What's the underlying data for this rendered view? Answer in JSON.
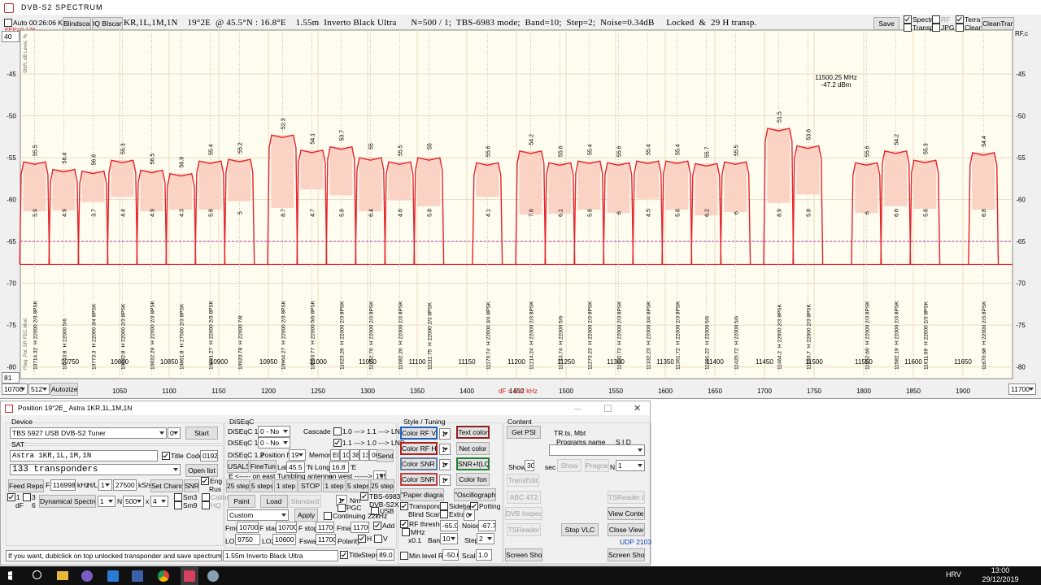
{
  "window_title": "DVB-S2  SPECTRUM",
  "toolbar": {
    "auto": "Auto 00:26:06  K=29",
    "blindscan": "Blindscan",
    "iq": "IQ BIscan",
    "info": "KR,1L,1M,1N    19°2E  @ 45.5°N : 16.8°E    1.55m  Inverto Black Ultra      N=500 / 1;  TBS-6983 mode;  Band=10;  Step=2;  Noise=0.34dB     Locked  &  29 H transp.",
    "fep": "FEP=0.176",
    "save": "Save",
    "spectr": "Spectr",
    "rf": "RF",
    "terra": "Terra",
    "transp": "Transp.",
    "jpg": "JPG",
    "clean": "Clean",
    "clean_transp": "CleanTransp",
    "ymax_box": "40",
    "ymin_box": "81",
    "fstart_box": "10700",
    "span_box": "512",
    "autosize": "Autozize",
    "fstop_box": "11700"
  },
  "chart_data": {
    "type": "spectrum",
    "color": "#e8202a",
    "band_color": "#fbd3c4",
    "threshold_color": "#c040c0",
    "grid": true,
    "xlim": [
      950,
      1950
    ],
    "ylim": [
      -81,
      -40
    ],
    "xticks": [
      1050,
      1100,
      1150,
      1200,
      1250,
      1300,
      1350,
      1400,
      1450,
      1500,
      1550,
      1600,
      1650,
      1700,
      1750,
      1800,
      1850,
      1900
    ],
    "x2ticks": [
      10750,
      10800,
      10850,
      10900,
      10950,
      11000,
      11050,
      11100,
      11150,
      11200,
      11250,
      11300,
      11350,
      11400,
      11450,
      11500,
      11550,
      11600,
      11650
    ],
    "yticks": [
      -45,
      -50,
      -55,
      -60,
      -65,
      -70,
      -75,
      -80
    ],
    "rf_label": "RF,c",
    "side_top": "SNR, dB   Level, %",
    "side_bottom": "Freq.  Pol.  SR  FEC  Mod",
    "marker_freq": "11500.25 MHz",
    "marker_level": "-47.2 dBm",
    "df": "dF = 512 kHz",
    "transponders": [
      {
        "freq": 10714.32,
        "mode": "H 22000 2/3 8PSK",
        "level": 55.5,
        "snr": 5.9
      },
      {
        "freq": 10743.8,
        "mode": "H 22000 5/6",
        "level": 56.4,
        "snr": 4.9
      },
      {
        "freq": 10773.3,
        "mode": "H 22000 3/4 8PSK",
        "level": 56.6,
        "snr": 3.7
      },
      {
        "freq": 10802.8,
        "mode": "H 22000 2/3 8PSK",
        "level": 55.3,
        "snr": 4.4
      },
      {
        "freq": 10832.29,
        "mode": "H 22000 2/3 8PSK",
        "level": 56.5,
        "snr": 4.9
      },
      {
        "freq": 10861.8,
        "mode": "H 27500 2/3 8PSK",
        "level": 56.9,
        "snr": 4.3
      },
      {
        "freq": 10891.27,
        "mode": "H 22000 2/3 8PSK",
        "level": 55.4,
        "snr": 5.8
      },
      {
        "freq": 10920.78,
        "mode": "H 22000 7/8",
        "level": 55.2,
        "snr": 5
      },
      {
        "freq": 10964.27,
        "mode": "H 22000 2/3 8PSK",
        "level": 52.3,
        "snr": 8.7
      },
      {
        "freq": 10993.77,
        "mode": "H 22000 5/6 8PSK",
        "level": 54.1,
        "snr": 4.7
      },
      {
        "freq": 11023.26,
        "mode": "H 22000 2/3 8PSK",
        "level": 53.7,
        "snr": 5.8
      },
      {
        "freq": 11052.76,
        "mode": "H 22000 2/3 8PSK",
        "level": 55,
        "snr": 6.4
      },
      {
        "freq": 11082.26,
        "mode": "H 22000 2/3 8PSK",
        "level": 55.5,
        "snr": 4.6
      },
      {
        "freq": 11111.75,
        "mode": "H 22000 2/3 8PSK",
        "level": 55,
        "snr": 5.8
      },
      {
        "freq": 11170.74,
        "mode": "H 22000 3/4 8PSK",
        "level": 55.6,
        "snr": 4.1
      },
      {
        "freq": 11214.24,
        "mode": "H 22000 2/3 8PSK",
        "level": 54.2,
        "snr": 7.6
      },
      {
        "freq": 11243.74,
        "mode": "H 22000 5/6",
        "level": 55.6,
        "snr": 6.1
      },
      {
        "freq": 11273.23,
        "mode": "H 22000 2/3 8PSK",
        "level": 55.4,
        "snr": 5.8
      },
      {
        "freq": 11302.73,
        "mode": "H 22000 2/3 8PSK",
        "level": 55.6,
        "snr": 6
      },
      {
        "freq": 11332.23,
        "mode": "H 22000 3/4 8PSK",
        "level": 55.4,
        "snr": 4.5
      },
      {
        "freq": 11361.72,
        "mode": "H 22000 2/3 8PSK",
        "level": 55.4,
        "snr": 5.8
      },
      {
        "freq": 11391.22,
        "mode": "H 22000 5/6",
        "level": 55.7,
        "snr": 6.2
      },
      {
        "freq": 11420.72,
        "mode": "H 22000 5/6",
        "level": 55.5,
        "snr": 6
      },
      {
        "freq": 11464.2,
        "mode": "H 22000 2/3 8PSK",
        "level": 51.5,
        "snr": 8.9
      },
      {
        "freq": 11493.7,
        "mode": "H 22000 2/3 8PSK",
        "level": 53.6,
        "snr": 5.8
      },
      {
        "freq": 11552.69,
        "mode": "H 22000 2/3 8PSK",
        "level": 55.6,
        "snr": 6
      },
      {
        "freq": 11582.19,
        "mode": "H 22000 2/3 8PSK",
        "level": 54.2,
        "snr": 6.6
      },
      {
        "freq": 11611.69,
        "mode": "H 22000 2/3 8PSK",
        "level": 55.3,
        "snr": 5.8
      },
      {
        "freq": 11670.68,
        "mode": "H 22000 2/3 8PSK",
        "level": 54.4,
        "snr": 6.8
      }
    ]
  },
  "position_window": {
    "title": "Position 19°2E_  Astra 1KR,1L,1M,1N",
    "device_group": "Device",
    "device": "TBS 5927 USB DVB-S2 Tuner",
    "device_index": "0",
    "start": "Start",
    "sat_group": "SAT",
    "sat_name": "Astra 1KR,1L,1M,1N",
    "title_check": "Title",
    "code_label": "Code",
    "code": "0192",
    "transponders": "133  transponders",
    "open_list": "Open list",
    "feed_report": "Feed Report",
    "f_label": "F",
    "frequency": "11699872",
    "khz": "kHz",
    "hl": "H/L",
    "hl_value": "1",
    "sr": "27500",
    "ksps": "kS/s",
    "set_channel": "Set Channel",
    "snr": "SNR",
    "eng": "Eng",
    "rus": "Rus",
    "chk_1": "1",
    "df": "dF",
    "chk_3": "3",
    "chk_6": "6",
    "dynamical": "Dynamical  Spectrum",
    "n_pre": "1",
    "n_label": "N",
    "n_value": "500",
    "x_label": "x",
    "x_value": "4",
    "sm3": "Sm3",
    "sm9": "Sm9",
    "calibr": "Calibr",
    "hq": "HQ",
    "status": "If you want, dublclick on top unlocked transponder and save spectrum",
    "lnb": "1.55m  Inverto Black Ultra",
    "title_check2": "Title",
    "steps": "Steps",
    "steps_value": "89.0",
    "diseqc_group": "DiSEqC",
    "d10": "DiSEqC 1.0",
    "d10_v": "0 - No",
    "d11": "DiSEqC 1.1",
    "d11_v": "0 - No",
    "d12": "DiSEqC 1.2",
    "position_n": "Position  N",
    "position_v": "19",
    "memory": "Memory",
    "mem": [
      "E0",
      "10",
      "38",
      "13",
      "00"
    ],
    "send": "Send",
    "cascade": "Cascade :",
    "cascade1": "1.0 ---> 1.1 ---> LNB",
    "cascade2": "1.1 ---> 1.0 ---> LNB",
    "usals": "USALS",
    "finetune": "FineTune",
    "lat": "Lat",
    "lat_v": "45.5",
    "n": "'N",
    "long": "Long",
    "long_v": "16.8",
    "e": "'E",
    "east": "E  <----- on east",
    "tumbling": "Tumbling antenna",
    "west": "on west ------> W",
    "west_v": "155",
    "steps_buttons": [
      "25 steps",
      "5 steps",
      "1 step",
      "STOP",
      "1 step",
      "5 steps",
      "25 steps"
    ],
    "paint": "Paint",
    "load": "Load",
    "standard": "Standard",
    "nm_v": "1",
    "nm": "Nm",
    "tbs": "TBS-6983",
    "dvbs2x": "DVB-S2X",
    "pgc": "PGC",
    "usb": "USB",
    "continuing": "Continuing 22kHz",
    "preset": "Custom",
    "apply": "Apply",
    "fmin": "Fmin",
    "fmin_v": "10700",
    "fstart": "F start",
    "fstart_v": "10700",
    "fstop": "F stop",
    "fstop_v": "11700",
    "fmax": "Fmax",
    "fmax_v": "11700",
    "add": "Add",
    "lo1": "LO1",
    "lo1_v": 9750,
    "lo2": "LO2",
    "lo2_v": "10600",
    "fswitch": "Fswati",
    "fswitch_v": "11700",
    "polarity": "Polarity",
    "h": "H",
    "v": "V",
    "style_group": "Style / Tuning",
    "color_rf_v": "Color  RF  V",
    "c1": "1",
    "text_color": "Text color",
    "color_rf_h": "Color  RF  H",
    "c2": "1",
    "net_color": "Net color",
    "color_snr_v": "Color  SNR  V",
    "c3": "1",
    "snr_lq": "SNR+f(LQ)",
    "color_snr_h": "Color  SNR  H",
    "c4": "1",
    "color_fon": "Color fon",
    "paper": "\"Paper diagram\"",
    "oscillograph": "\"Oscillograph\"",
    "transpond": "Transpond.",
    "sidebar": "Sidebar",
    "potting": "Potting",
    "blind_scan": "Blind  Scan",
    "extra": "Extra",
    "extra_v": "0",
    "rf_threshold": "RF threshold",
    "rf_threshold_v": {
      "value": -65,
      "label": "-65.0"
    },
    "noise": "Noise",
    "noise_v": -67.75,
    "mhz": "MHz",
    "x01": "x0.1",
    "band": "Band",
    "band_v": "10",
    "step": "Step",
    "step_v": "2",
    "min_level": "Min level RF",
    "min_level_v": "-50.0",
    "scale": "Scale",
    "scale_v": "1.0",
    "content_group": "Content",
    "get_psi": "Get PSI",
    "ts_file": "TR.ts,  Mbt",
    "programs_name": "Programs  name",
    "sid": "S I D",
    "show": "Show",
    "show_v": "30",
    "sec": "sec",
    "show_btn": "Show",
    "program": "Program",
    "program_n": "N",
    "program_v": "1",
    "transedit": "TransEdit",
    "tsreader_lite": "TSReader Lite",
    "abc": "ABC 4T2",
    "dvb_inspector": "DVB Inspector",
    "view_content": "View Content",
    "tsreader": "TSReader",
    "stop_vlc": "Stop VLC",
    "close_view": "Close View",
    "udp": "UDP 2103",
    "screen_shot1": "Screen Shot",
    "screen_shot2": "Screen Shot"
  },
  "taskbar": {
    "lang": "HRV",
    "time": "13:00",
    "date": "29/12/2019"
  }
}
